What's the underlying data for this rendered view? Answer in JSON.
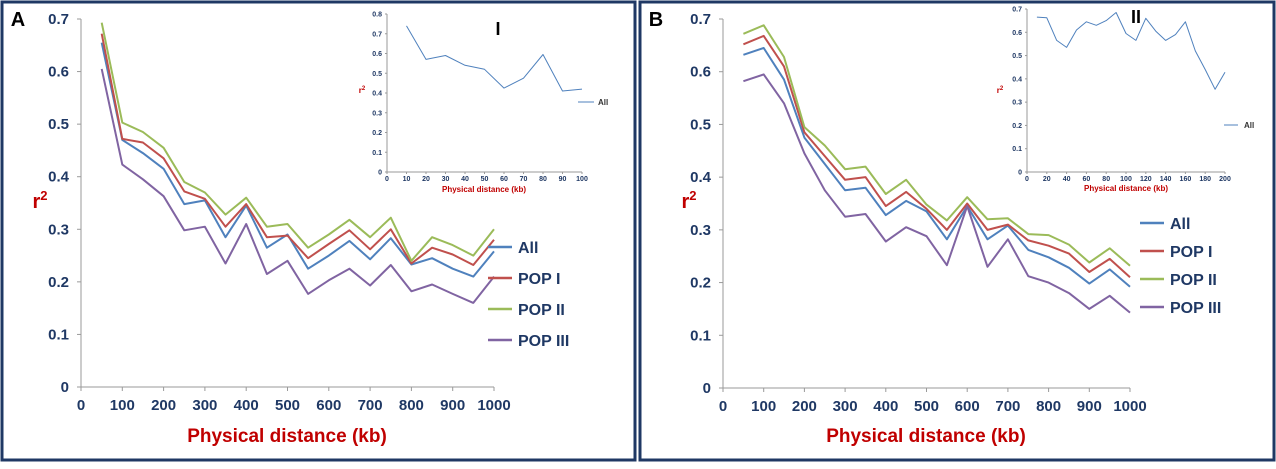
{
  "chart_data": [
    {
      "panel_label": "A",
      "type": "line",
      "xlabel": "Physical distance (kb)",
      "ylabel": "r",
      "ylabel_sup": "2",
      "xlim": [
        0,
        1000
      ],
      "ylim": [
        0,
        0.7
      ],
      "xticks": [
        "0",
        "100",
        "200",
        "300",
        "400",
        "500",
        "600",
        "700",
        "800",
        "900",
        "1000"
      ],
      "yticks": [
        "0",
        "0.1",
        "0.2",
        "0.3",
        "0.4",
        "0.5",
        "0.6",
        "0.7"
      ],
      "x": [
        50,
        100,
        150,
        200,
        250,
        300,
        350,
        400,
        450,
        500,
        550,
        600,
        650,
        700,
        750,
        800,
        850,
        900,
        950,
        1000
      ],
      "series": [
        {
          "name": "All",
          "color": "#4f81bd",
          "values": [
            0.655,
            0.47,
            0.445,
            0.415,
            0.348,
            0.355,
            0.285,
            0.345,
            0.265,
            0.29,
            0.225,
            0.25,
            0.278,
            0.243,
            0.283,
            0.233,
            0.245,
            0.225,
            0.21,
            0.258
          ]
        },
        {
          "name": "POP I",
          "color": "#c0504d",
          "values": [
            0.672,
            0.472,
            0.465,
            0.435,
            0.372,
            0.358,
            0.305,
            0.348,
            0.285,
            0.288,
            0.245,
            0.272,
            0.298,
            0.262,
            0.3,
            0.235,
            0.265,
            0.252,
            0.232,
            0.28
          ]
        },
        {
          "name": "POP II",
          "color": "#9bbb59",
          "values": [
            0.693,
            0.503,
            0.485,
            0.455,
            0.39,
            0.37,
            0.328,
            0.36,
            0.305,
            0.31,
            0.265,
            0.29,
            0.318,
            0.285,
            0.322,
            0.24,
            0.285,
            0.27,
            0.25,
            0.3
          ]
        },
        {
          "name": "POP III",
          "color": "#8064a2",
          "values": [
            0.605,
            0.423,
            0.395,
            0.363,
            0.298,
            0.305,
            0.235,
            0.31,
            0.215,
            0.24,
            0.177,
            0.203,
            0.225,
            0.193,
            0.232,
            0.182,
            0.195,
            0.177,
            0.16,
            0.21
          ]
        }
      ],
      "legend": [
        "All",
        "POP I",
        "POP II",
        "POP III"
      ],
      "inset": {
        "label": "I",
        "xlabel": "Physical distance (kb)",
        "ylabel": "r",
        "ylabel_sup": "2",
        "xlim": [
          0,
          100
        ],
        "ylim": [
          0,
          0.8
        ],
        "xticks": [
          "0",
          "10",
          "20",
          "30",
          "40",
          "50",
          "60",
          "70",
          "80",
          "90",
          "100"
        ],
        "yticks": [
          "0",
          "0.1",
          "0.2",
          "0.3",
          "0.4",
          "0.5",
          "0.6",
          "0.7",
          "0.8"
        ],
        "x": [
          10,
          20,
          30,
          40,
          50,
          60,
          70,
          80,
          90,
          100
        ],
        "series": [
          {
            "name": "All",
            "color": "#4f81bd",
            "values": [
              0.74,
              0.57,
              0.59,
              0.54,
              0.52,
              0.425,
              0.475,
              0.595,
              0.41,
              0.42
            ]
          }
        ],
        "legend": [
          "All"
        ]
      }
    },
    {
      "panel_label": "B",
      "type": "line",
      "xlabel": "Physical distance (kb)",
      "ylabel": "r",
      "ylabel_sup": "2",
      "xlim": [
        0,
        1000
      ],
      "ylim": [
        0,
        0.7
      ],
      "xticks": [
        "0",
        "100",
        "200",
        "300",
        "400",
        "500",
        "600",
        "700",
        "800",
        "900",
        "1000"
      ],
      "yticks": [
        "0",
        "0.1",
        "0.2",
        "0.3",
        "0.4",
        "0.5",
        "0.6",
        "0.7"
      ],
      "x": [
        50,
        100,
        150,
        200,
        250,
        300,
        350,
        400,
        450,
        500,
        550,
        600,
        650,
        700,
        750,
        800,
        850,
        900,
        950,
        1000
      ],
      "series": [
        {
          "name": "All",
          "color": "#4f81bd",
          "values": [
            0.632,
            0.645,
            0.585,
            0.475,
            0.425,
            0.375,
            0.38,
            0.328,
            0.355,
            0.335,
            0.282,
            0.345,
            0.282,
            0.308,
            0.262,
            0.248,
            0.228,
            0.198,
            0.225,
            0.192
          ]
        },
        {
          "name": "POP I",
          "color": "#c0504d",
          "values": [
            0.652,
            0.668,
            0.61,
            0.485,
            0.44,
            0.395,
            0.4,
            0.345,
            0.372,
            0.34,
            0.3,
            0.35,
            0.3,
            0.31,
            0.28,
            0.27,
            0.255,
            0.22,
            0.245,
            0.21
          ]
        },
        {
          "name": "POP II",
          "color": "#9bbb59",
          "values": [
            0.672,
            0.688,
            0.628,
            0.495,
            0.46,
            0.415,
            0.42,
            0.368,
            0.395,
            0.348,
            0.318,
            0.362,
            0.32,
            0.322,
            0.292,
            0.29,
            0.272,
            0.238,
            0.265,
            0.232
          ]
        },
        {
          "name": "POP III",
          "color": "#8064a2",
          "values": [
            0.582,
            0.595,
            0.54,
            0.445,
            0.375,
            0.325,
            0.33,
            0.278,
            0.305,
            0.288,
            0.233,
            0.345,
            0.23,
            0.282,
            0.212,
            0.2,
            0.18,
            0.15,
            0.175,
            0.143
          ]
        }
      ],
      "legend": [
        "All",
        "POP I",
        "POP II",
        "POP III"
      ],
      "inset": {
        "label": "II",
        "xlabel": "Physical distance (kb)",
        "ylabel": "r",
        "ylabel_sup": "2",
        "xlim": [
          0,
          200
        ],
        "ylim": [
          0,
          0.7
        ],
        "xticks": [
          "0",
          "20",
          "40",
          "60",
          "80",
          "100",
          "120",
          "140",
          "160",
          "180",
          "200"
        ],
        "yticks": [
          "0",
          "0.1",
          "0.2",
          "0.3",
          "0.4",
          "0.5",
          "0.6",
          "0.7"
        ],
        "x": [
          10,
          20,
          30,
          40,
          50,
          60,
          70,
          80,
          90,
          100,
          110,
          120,
          130,
          140,
          150,
          160,
          170,
          180,
          190,
          200
        ],
        "series": [
          {
            "name": "All",
            "color": "#4f81bd",
            "values": [
              0.665,
              0.662,
              0.565,
              0.535,
              0.61,
              0.645,
              0.63,
              0.65,
              0.685,
              0.595,
              0.565,
              0.66,
              0.605,
              0.565,
              0.59,
              0.645,
              0.52,
              0.44,
              0.355,
              0.428
            ]
          }
        ],
        "legend": [
          "All"
        ]
      }
    }
  ]
}
